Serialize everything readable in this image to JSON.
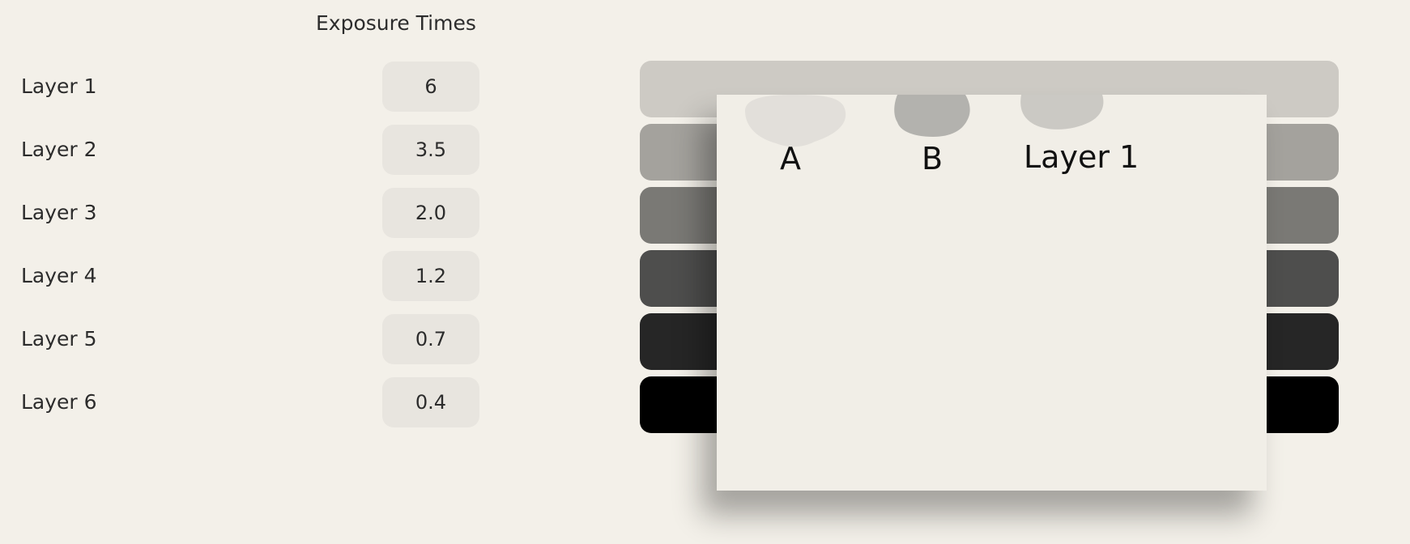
{
  "header": {
    "title": "Exposure Times"
  },
  "layers": [
    {
      "label": "Layer 1",
      "time": "6",
      "color": "#cdcac4"
    },
    {
      "label": "Layer 2",
      "time": "3.5",
      "color": "#a4a29d"
    },
    {
      "label": "Layer 3",
      "time": "2.0",
      "color": "#7a7975"
    },
    {
      "label": "Layer 4",
      "time": "1.2",
      "color": "#4e4e4d"
    },
    {
      "label": "Layer 5",
      "time": "0.7",
      "color": "#262626"
    },
    {
      "label": "Layer 6",
      "time": "0.4",
      "color": "#000000"
    }
  ],
  "panel": {
    "swatches": [
      {
        "label": "A",
        "color": "#e2dfda"
      },
      {
        "label": "B",
        "color": "#b3b2ae"
      },
      {
        "label": "Layer 1",
        "color": "#cbc9c4"
      }
    ]
  }
}
